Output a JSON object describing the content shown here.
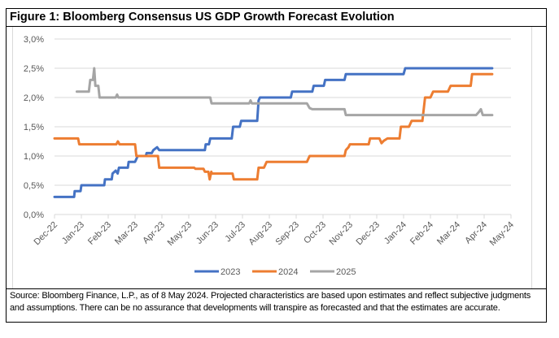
{
  "figure": {
    "title": "Figure 1: Bloomberg Consensus US GDP Growth Forecast Evolution",
    "source": "Source: Bloomberg Finance, L.P., as of 8 May 2024. Projected characteristics are based upon estimates and reflect subjective judgments and assumptions. There can be no assurance that developments will transpire as forecasted and that the estimates are accurate."
  },
  "chart_data": {
    "type": "line",
    "title": "Figure 1: Bloomberg Consensus US GDP Growth Forecast Evolution",
    "xlabel": "",
    "ylabel": "",
    "x_unit": "months since Dec-22",
    "categories": [
      "Dec-22",
      "Jan-23",
      "Feb-23",
      "Mar-23",
      "Apr-23",
      "May-23",
      "Jun-23",
      "Jul-23",
      "Aug-23",
      "Sep-23",
      "Oct-23",
      "Nov-23",
      "Dec-23",
      "Jan-24",
      "Feb-24",
      "Mar-24",
      "Apr-24",
      "May-24"
    ],
    "ylim": [
      0,
      3.0
    ],
    "yticks": [
      "0,0%",
      "0,5%",
      "1,0%",
      "1,5%",
      "2,0%",
      "2,5%",
      "3,0%"
    ],
    "ytick_values": [
      0,
      0.5,
      1.0,
      1.5,
      2.0,
      2.5,
      3.0
    ],
    "grid": true,
    "legend_position": "bottom",
    "series": [
      {
        "name": "2023",
        "color": "#4472c4",
        "points": [
          [
            0,
            0.3
          ],
          [
            0.73,
            0.3
          ],
          [
            0.75,
            0.4
          ],
          [
            0.97,
            0.4
          ],
          [
            1.0,
            0.5
          ],
          [
            1.85,
            0.5
          ],
          [
            1.88,
            0.6
          ],
          [
            2.13,
            0.6
          ],
          [
            2.16,
            0.7
          ],
          [
            2.28,
            0.75
          ],
          [
            2.35,
            0.7
          ],
          [
            2.4,
            0.8
          ],
          [
            2.73,
            0.8
          ],
          [
            2.76,
            0.9
          ],
          [
            3.0,
            0.9
          ],
          [
            3.05,
            0.95
          ],
          [
            3.1,
            1.0
          ],
          [
            3.4,
            1.0
          ],
          [
            3.43,
            1.05
          ],
          [
            3.62,
            1.05
          ],
          [
            3.68,
            1.1
          ],
          [
            3.82,
            1.15
          ],
          [
            3.9,
            1.1
          ],
          [
            5.6,
            1.1
          ],
          [
            5.63,
            1.2
          ],
          [
            5.75,
            1.2
          ],
          [
            5.8,
            1.3
          ],
          [
            6.6,
            1.3
          ],
          [
            6.65,
            1.5
          ],
          [
            6.9,
            1.5
          ],
          [
            6.95,
            1.6
          ],
          [
            7.55,
            1.6
          ],
          [
            7.6,
            1.95
          ],
          [
            7.65,
            2.0
          ],
          [
            8.8,
            2.0
          ],
          [
            8.85,
            2.1
          ],
          [
            9.6,
            2.1
          ],
          [
            9.65,
            2.2
          ],
          [
            10.03,
            2.2
          ],
          [
            10.08,
            2.3
          ],
          [
            10.8,
            2.3
          ],
          [
            10.85,
            2.4
          ],
          [
            13.0,
            2.4
          ],
          [
            13.06,
            2.5
          ],
          [
            16.3,
            2.5
          ]
        ]
      },
      {
        "name": "2024",
        "color": "#ed7d31",
        "points": [
          [
            0,
            1.3
          ],
          [
            0.88,
            1.3
          ],
          [
            0.92,
            1.2
          ],
          [
            2.3,
            1.2
          ],
          [
            2.36,
            1.25
          ],
          [
            2.42,
            1.2
          ],
          [
            3.0,
            1.2
          ],
          [
            3.05,
            1.0
          ],
          [
            3.85,
            1.0
          ],
          [
            3.9,
            0.8
          ],
          [
            5.2,
            0.8
          ],
          [
            5.25,
            0.78
          ],
          [
            5.55,
            0.78
          ],
          [
            5.6,
            0.73
          ],
          [
            5.73,
            0.73
          ],
          [
            5.78,
            0.6
          ],
          [
            5.84,
            0.73
          ],
          [
            5.86,
            0.7
          ],
          [
            6.63,
            0.7
          ],
          [
            6.68,
            0.6
          ],
          [
            7.55,
            0.6
          ],
          [
            7.6,
            0.8
          ],
          [
            7.8,
            0.8
          ],
          [
            7.9,
            0.9
          ],
          [
            9.4,
            0.9
          ],
          [
            9.5,
            1.0
          ],
          [
            10.8,
            1.0
          ],
          [
            10.85,
            1.1
          ],
          [
            10.95,
            1.15
          ],
          [
            11.0,
            1.2
          ],
          [
            11.7,
            1.2
          ],
          [
            11.75,
            1.3
          ],
          [
            12.1,
            1.3
          ],
          [
            12.18,
            1.22
          ],
          [
            12.26,
            1.26
          ],
          [
            12.4,
            1.3
          ],
          [
            12.85,
            1.3
          ],
          [
            12.9,
            1.5
          ],
          [
            13.2,
            1.5
          ],
          [
            13.3,
            1.6
          ],
          [
            13.7,
            1.6
          ],
          [
            13.8,
            2.0
          ],
          [
            14.0,
            2.0
          ],
          [
            14.1,
            2.1
          ],
          [
            14.65,
            2.1
          ],
          [
            14.75,
            2.2
          ],
          [
            15.5,
            2.2
          ],
          [
            15.55,
            2.4
          ],
          [
            16.3,
            2.4
          ]
        ]
      },
      {
        "name": "2025",
        "color": "#a5a5a5",
        "points": [
          [
            0.83,
            2.1
          ],
          [
            1.28,
            2.1
          ],
          [
            1.33,
            2.3
          ],
          [
            1.43,
            2.3
          ],
          [
            1.48,
            2.5
          ],
          [
            1.52,
            2.2
          ],
          [
            1.63,
            2.2
          ],
          [
            1.68,
            2.0
          ],
          [
            2.28,
            2.0
          ],
          [
            2.33,
            2.05
          ],
          [
            2.38,
            2.0
          ],
          [
            5.8,
            2.0
          ],
          [
            5.85,
            1.9
          ],
          [
            7.25,
            1.9
          ],
          [
            7.3,
            1.95
          ],
          [
            7.35,
            1.9
          ],
          [
            9.4,
            1.9
          ],
          [
            9.5,
            1.82
          ],
          [
            9.6,
            1.8
          ],
          [
            10.8,
            1.8
          ],
          [
            10.85,
            1.7
          ],
          [
            15.7,
            1.7
          ],
          [
            15.8,
            1.75
          ],
          [
            15.88,
            1.8
          ],
          [
            15.95,
            1.7
          ],
          [
            16.3,
            1.7
          ]
        ]
      }
    ]
  }
}
